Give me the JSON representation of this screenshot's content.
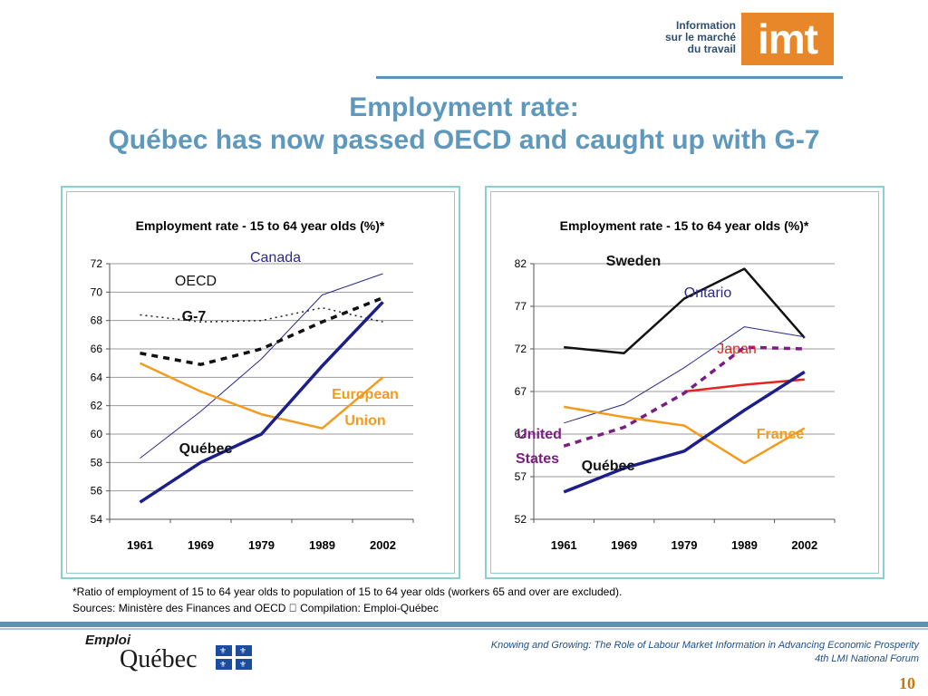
{
  "logo": {
    "text_line1": "Information",
    "text_line2": "sur le marché",
    "text_line3": "du travail",
    "mark": "imt",
    "color": "#e8872a"
  },
  "slide": {
    "title_line1": "Employment rate:",
    "title_line2": "Québec has now passed OECD and caught up with G-7",
    "title_color": "#5e98bd"
  },
  "chart_data": [
    {
      "type": "line",
      "title": "Employment rate - 15 to 64 year olds (%)*",
      "categories": [
        "1961",
        "1969",
        "1979",
        "1989",
        "2002"
      ],
      "ylim": [
        54,
        72
      ],
      "yticks": [
        "54",
        "56",
        "58",
        "60",
        "62",
        "64",
        "66",
        "68",
        "70",
        "72"
      ],
      "grid": true,
      "series": [
        {
          "name": "Canada",
          "values": [
            58.3,
            61.6,
            65.3,
            69.8,
            71.3
          ],
          "color": "#2b2a8c",
          "style": "thin"
        },
        {
          "name": "OECD",
          "values": [
            68.4,
            67.9,
            68.0,
            68.9,
            67.9
          ],
          "color": "#222222",
          "style": "dotted"
        },
        {
          "name": "G-7",
          "values": [
            65.7,
            64.9,
            66.0,
            67.9,
            69.6
          ],
          "color": "#111111",
          "style": "dashed"
        },
        {
          "name": "European Union",
          "values": [
            65.0,
            63.0,
            61.4,
            60.4,
            64.0
          ],
          "color": "#f39b1f",
          "style": "medium"
        },
        {
          "name": "Québec",
          "values": [
            55.2,
            58.0,
            60.0,
            64.8,
            69.3
          ],
          "color": "#1c1f8a",
          "style": "thick"
        }
      ],
      "labels": [
        {
          "text": "Canada",
          "series": "Canada",
          "color": "#2b2a8c",
          "bold": false
        },
        {
          "text": "OECD",
          "series": "OECD",
          "color": "#111111",
          "bold": false
        },
        {
          "text": "G-7",
          "series": "G-7",
          "color": "#111111",
          "bold": true
        },
        {
          "text": "European",
          "series": "European Union",
          "color": "#f39b1f",
          "bold": true
        },
        {
          "text": "Union",
          "series": "European Union",
          "color": "#f39b1f",
          "bold": true
        },
        {
          "text": "Québec",
          "series": "Québec",
          "color": "#111111",
          "bold": true
        }
      ]
    },
    {
      "type": "line",
      "title": "Employment rate - 15 to 64 year olds (%)*",
      "categories": [
        "1961",
        "1969",
        "1979",
        "1989",
        "2002"
      ],
      "ylim": [
        52,
        82
      ],
      "yticks": [
        "52",
        "57",
        "62",
        "67",
        "72",
        "77",
        "82"
      ],
      "grid": true,
      "series": [
        {
          "name": "Sweden",
          "values": [
            72.2,
            71.5,
            77.9,
            81.4,
            73.3
          ],
          "color": "#111111",
          "style": "medium"
        },
        {
          "name": "Ontario",
          "values": [
            63.3,
            65.5,
            69.8,
            74.6,
            73.4
          ],
          "color": "#2b2a8c",
          "style": "thin"
        },
        {
          "name": "Japan",
          "values": [
            null,
            null,
            67.0,
            67.8,
            68.4
          ],
          "color": "#e5251d",
          "style": "medium"
        },
        {
          "name": "United States",
          "values": [
            60.6,
            62.8,
            66.8,
            72.2,
            72.0
          ],
          "color": "#7a1e82",
          "style": "dashed"
        },
        {
          "name": "France",
          "values": [
            65.2,
            64.0,
            63.0,
            58.6,
            62.7
          ],
          "color": "#f39b1f",
          "style": "medium"
        },
        {
          "name": "Québec",
          "values": [
            55.2,
            58.0,
            60.0,
            64.8,
            69.3
          ],
          "color": "#1c1f8a",
          "style": "thick"
        }
      ],
      "labels": [
        {
          "text": "Sweden",
          "series": "Sweden",
          "color": "#111111",
          "bold": true
        },
        {
          "text": "Ontario",
          "series": "Ontario",
          "color": "#2b2a8c",
          "bold": false
        },
        {
          "text": "Japan",
          "series": "Japan",
          "color": "#e5251d",
          "bold": false
        },
        {
          "text": "United",
          "series": "United States",
          "color": "#7a1e82",
          "bold": true
        },
        {
          "text": "States",
          "series": "United States",
          "color": "#7a1e82",
          "bold": true
        },
        {
          "text": "France",
          "series": "France",
          "color": "#f39b1f",
          "bold": true
        },
        {
          "text": "Québec",
          "series": "Québec",
          "color": "#111111",
          "bold": true
        }
      ]
    }
  ],
  "notes": {
    "footnote": "*Ratio of employment of 15 to 64 year olds to population of 15 to 64 year olds (workers 65 and over are excluded).",
    "sources": "Sources: Ministère des Finances and OECD  Compilation: Emploi-Québec"
  },
  "footer": {
    "org_line1": "Emploi",
    "org_line2": "Québec",
    "flag_color": "#1a4d9e",
    "flag_glyph": "⚜",
    "text_line1": "Knowing and Growing: The Role of Labour Market Information in Advancing Economic Prosperity",
    "text_line2": "4th LMI National Forum",
    "page_number": "10"
  }
}
